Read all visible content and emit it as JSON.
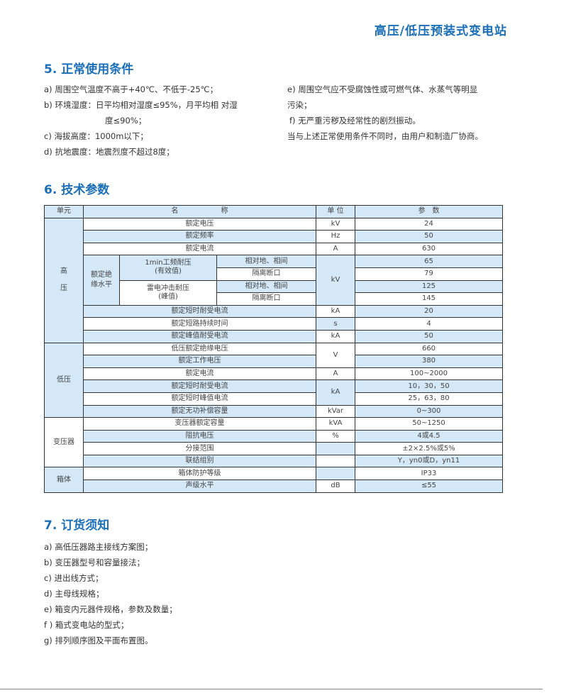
{
  "header": {
    "title": "高压/低压预装式变电站"
  },
  "s5": {
    "heading": "5. 正常使用条件",
    "left": [
      "a) 周围空气温度不高于+40℃、不低于-25℃；",
      "b) 环境湿度：日平均相对湿度≤95%，月平均相 对湿",
      "度≤90%；",
      "c) 海拔高度：1000m以下；",
      "d) 抗地震度：地震烈度不超过8度；"
    ],
    "right": [
      "e) 周围空气应不受腐蚀性或可燃气体、水蒸气等明显",
      "污染；",
      "f) 无严重污秽及经常性的剧烈振动。",
      "当与上述正常使用条件不同时，由用户和制造厂协商。"
    ]
  },
  "s6": {
    "heading": "6.  技术参数",
    "header": [
      "单元",
      "名　　　　　　称",
      "单 位",
      "参　数"
    ],
    "hv": {
      "unit": "高\n\n压",
      "r": [
        [
          "额定电压",
          "kV",
          "24"
        ],
        [
          "额定频率",
          "Hz",
          "50"
        ],
        [
          "额定电流",
          "A",
          "630"
        ]
      ],
      "ins": "额定绝缘水平",
      "pf": "1min工频耐压",
      "pf2": "(有效值)",
      "li": "雷电冲击耐压",
      "li2": "(峰值)",
      "pg": "相对地、相间",
      "iso": "隔离断口",
      "insunit": "kV",
      "vals": [
        "65",
        "79",
        "125",
        "145"
      ],
      "r2": [
        [
          "额定短时耐受电流",
          "kA",
          "20"
        ],
        [
          "额定短路持续时间",
          "s",
          "4"
        ],
        [
          "额定峰值耐受电流",
          "kA",
          "50"
        ]
      ]
    },
    "lv": {
      "unit": "低压",
      "r": [
        [
          "低压额定绝缘电压",
          "V",
          "660"
        ],
        [
          "额定工作电压",
          "",
          "380"
        ],
        [
          "额定电流",
          "A",
          "100~2000"
        ],
        [
          "额定短时耐受电流",
          "kA",
          "10，30，50"
        ],
        [
          "额定短时峰值电流",
          "",
          "25，63，80"
        ],
        [
          "额定无功补偿容量",
          "kVar",
          "0~300"
        ]
      ]
    },
    "tr": {
      "unit": "变压器",
      "r": [
        [
          "变压器额定容量",
          "kVA",
          "50~1250"
        ],
        [
          "阻抗电压",
          "%",
          "4或4.5"
        ],
        [
          "分接范围",
          "",
          "±2×2.5%或5%"
        ],
        [
          "联结组别",
          "",
          "Y，yn0或D，yn11"
        ]
      ]
    },
    "box": {
      "unit": "箱体",
      "r": [
        [
          "箱体防护等级",
          "",
          "IP33"
        ],
        [
          "声级水平",
          "dB",
          "≤55"
        ]
      ]
    }
  },
  "s7": {
    "heading": "7.  订货须知",
    "items": [
      "a) 高低压器路主接线方案图；",
      "b) 变压器型号和容量接法；",
      "c) 进出线方式；",
      "d) 主母线规格；",
      "e) 箱变内元器件规格，参数及数量；",
      "f ) 箱式变电站的型式；",
      "g) 排列顺序图及平面布置图。"
    ]
  }
}
